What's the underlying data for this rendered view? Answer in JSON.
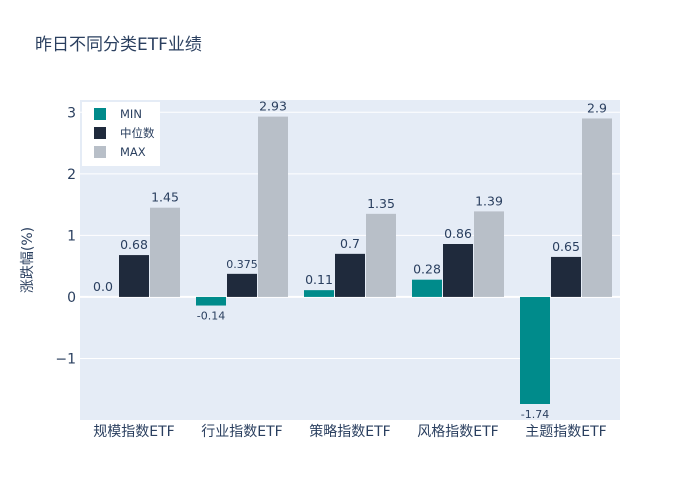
{
  "chart_data": {
    "type": "bar",
    "title": "昨日不同分类ETF业绩",
    "ylabel": "涨跌幅(%)",
    "xlabel": "",
    "categories": [
      "规模指数ETF",
      "行业指数ETF",
      "策略指数ETF",
      "风格指数ETF",
      "主题指数ETF"
    ],
    "series": [
      {
        "name": "MIN",
        "color": "#008b8b",
        "values": [
          0.0,
          -0.14,
          0.11,
          0.28,
          -1.74
        ],
        "labels": [
          "0.0",
          "-0.14",
          "0.11",
          "0.28",
          "-1.74"
        ]
      },
      {
        "name": "中位数",
        "color": "#1f2a3c",
        "values": [
          0.68,
          0.375,
          0.7,
          0.86,
          0.65
        ],
        "labels": [
          "0.68",
          "0.375",
          "0.7",
          "0.86",
          "0.65"
        ]
      },
      {
        "name": "MAX",
        "color": "#b8bfc8",
        "values": [
          1.45,
          2.93,
          1.35,
          1.39,
          2.9
        ],
        "labels": [
          "1.45",
          "2.93",
          "1.35",
          "1.39",
          "2.9"
        ]
      }
    ],
    "ylim": [
      -2.0,
      3.2
    ],
    "yticks": [
      -1,
      0,
      1,
      2,
      3
    ],
    "ytick_labels": [
      "−1",
      "0",
      "1",
      "2",
      "3"
    ],
    "grid": true,
    "legend_position": "top-left",
    "plot_background": "#e5ecf6"
  }
}
